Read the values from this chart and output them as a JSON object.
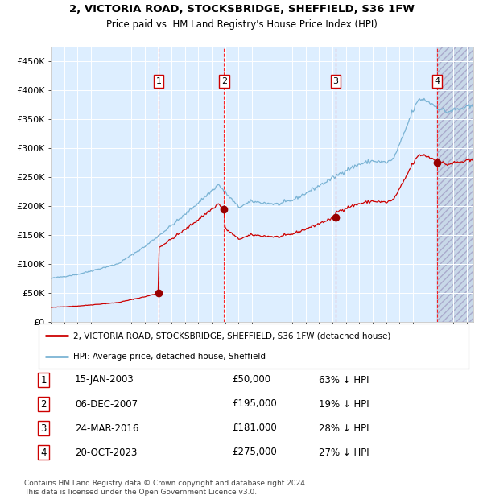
{
  "title1": "2, VICTORIA ROAD, STOCKSBRIDGE, SHEFFIELD, S36 1FW",
  "title2": "Price paid vs. HM Land Registry's House Price Index (HPI)",
  "ylabel_ticks": [
    "£0",
    "£50K",
    "£100K",
    "£150K",
    "£200K",
    "£250K",
    "£300K",
    "£350K",
    "£400K",
    "£450K"
  ],
  "ytick_values": [
    0,
    50000,
    100000,
    150000,
    200000,
    250000,
    300000,
    350000,
    400000,
    450000
  ],
  "ylim": [
    0,
    475000
  ],
  "xlim_start": 1995.0,
  "xlim_end": 2026.5,
  "hpi_color": "#7ab3d4",
  "price_color": "#cc0000",
  "bg_color": "#ddeeff",
  "transactions": [
    {
      "num": 1,
      "date_str": "15-JAN-2003",
      "date_x": 2003.04,
      "price": 50000,
      "label": "£50,000",
      "pct": "63% ↓ HPI"
    },
    {
      "num": 2,
      "date_str": "06-DEC-2007",
      "date_x": 2007.92,
      "price": 195000,
      "label": "£195,000",
      "pct": "19% ↓ HPI"
    },
    {
      "num": 3,
      "date_str": "24-MAR-2016",
      "date_x": 2016.23,
      "price": 181000,
      "label": "£181,000",
      "pct": "28% ↓ HPI"
    },
    {
      "num": 4,
      "date_str": "20-OCT-2023",
      "date_x": 2023.8,
      "price": 275000,
      "label": "£275,000",
      "pct": "27% ↓ HPI"
    }
  ],
  "legend_label1": "2, VICTORIA ROAD, STOCKSBRIDGE, SHEFFIELD, S36 1FW (detached house)",
  "legend_label2": "HPI: Average price, detached house, Sheffield",
  "footnote1": "Contains HM Land Registry data © Crown copyright and database right 2024.",
  "footnote2": "This data is licensed under the Open Government Licence v3.0.",
  "hpi_control_points": {
    "1995.0": 75000,
    "1997.0": 82000,
    "2000.0": 100000,
    "2002.0": 130000,
    "2003.0": 148000,
    "2005.0": 185000,
    "2007.5": 237000,
    "2009.0": 198000,
    "2010.0": 208000,
    "2011.0": 205000,
    "2012.0": 203000,
    "2013.0": 210000,
    "2014.0": 222000,
    "2015.0": 235000,
    "2016.0": 248000,
    "2017.0": 262000,
    "2018.0": 272000,
    "2019.0": 278000,
    "2020.0": 275000,
    "2020.5": 280000,
    "2021.0": 305000,
    "2021.5": 335000,
    "2022.0": 365000,
    "2022.5": 385000,
    "2023.0": 382000,
    "2023.5": 375000,
    "2024.0": 368000,
    "2024.5": 362000,
    "2025.0": 365000,
    "2026.0": 370000,
    "2026.5": 372000
  }
}
